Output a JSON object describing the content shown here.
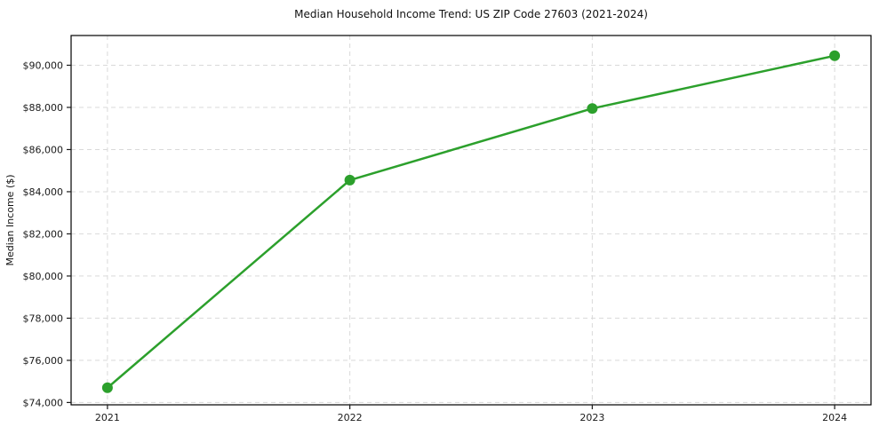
{
  "chart_data": {
    "type": "line",
    "title": "Median Household Income Trend: US ZIP Code 27603 (2021-2024)",
    "xlabel": "",
    "ylabel": "Median Income ($)",
    "x": [
      2021,
      2022,
      2023,
      2024
    ],
    "x_tick_labels": [
      "2021",
      "2022",
      "2023",
      "2024"
    ],
    "series": [
      {
        "name": "Median Household Income",
        "values": [
          74700,
          84550,
          87950,
          90450
        ],
        "color": "#2ca02c",
        "marker": "circle"
      }
    ],
    "xlim": [
      2020.85,
      2024.15
    ],
    "ylim": [
      73890,
      91410
    ],
    "y_ticks": [
      74000,
      76000,
      78000,
      80000,
      82000,
      84000,
      86000,
      88000,
      90000
    ],
    "y_tick_prefix": "$",
    "grid": "dashed",
    "legend": "none",
    "colors": {
      "line": "#2ca02c",
      "marker": "#2ca02c",
      "grid": "#d9d9d9",
      "spine": "#000000",
      "tick": "#1a1a1a",
      "text": "#1a1a1a",
      "background": "#ffffff"
    }
  }
}
